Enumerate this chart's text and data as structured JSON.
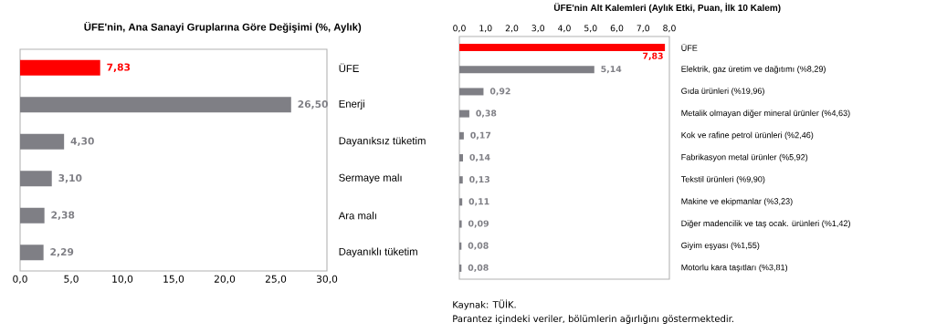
{
  "chart_data": [
    {
      "type": "bar",
      "orientation": "horizontal",
      "title": "ÜFE'nin, Ana Sanayi Gruplarına  Göre Değişimi  (%, Aylık)",
      "categories": [
        "ÜFE",
        "Enerji",
        "Dayanıksız tüketim",
        "Sermaye malı",
        "Ara malı",
        "Dayanıklı tüketim"
      ],
      "values": [
        7.83,
        26.5,
        4.3,
        3.1,
        2.38,
        2.29
      ],
      "value_labels": [
        "7,83",
        "26,50",
        "4,30",
        "3,10",
        "2,38",
        "2,29"
      ],
      "colors": [
        "#ff0000",
        "#7f7f85",
        "#7f7f85",
        "#7f7f85",
        "#7f7f85",
        "#7f7f85"
      ],
      "xlim": [
        0,
        30
      ],
      "xticks": [
        {
          "value": 0,
          "label": "0,0"
        },
        {
          "value": 5,
          "label": "5,0"
        },
        {
          "value": 10,
          "label": "10,0"
        },
        {
          "value": 15,
          "label": "15,0"
        },
        {
          "value": 20,
          "label": "20,0"
        },
        {
          "value": 25,
          "label": "25,0"
        },
        {
          "value": 30,
          "label": "30,0"
        }
      ]
    },
    {
      "type": "bar",
      "orientation": "horizontal",
      "title": "ÜFE'nin Alt Kalemleri (Aylık Etki, Puan,  İlk 10 Kalem)",
      "categories": [
        "ÜFE",
        "Elektrik, gaz üretim ve dağıtımı (%8,29)",
        "Gıda ürünleri (%19,96)",
        "Metalik olmayan diğer mineral ürünler (%4,63)",
        "Kok ve rafine petrol ürünleri (%2,46)",
        "Fabrikasyon metal ürünler (%5,92)",
        "Tekstil ürünleri (%9,90)",
        "Makine ve ekipmanlar (%3,23)",
        "Diğer madencilik ve taş ocak. ürünleri (%1,42)",
        "Giyim eşyası (%1,55)",
        "Motorlu kara taşıtları (%3,81)"
      ],
      "values": [
        7.83,
        5.14,
        0.92,
        0.38,
        0.17,
        0.14,
        0.13,
        0.11,
        0.09,
        0.08,
        0.08
      ],
      "value_labels": [
        "7,83",
        "5,14",
        "0,92",
        "0,38",
        "0,17",
        "0,14",
        "0,13",
        "0,11",
        "0,09",
        "0,08",
        "0,08"
      ],
      "colors": [
        "#ff0000",
        "#7f7f85",
        "#7f7f85",
        "#7f7f85",
        "#7f7f85",
        "#7f7f85",
        "#7f7f85",
        "#7f7f85",
        "#7f7f85",
        "#7f7f85",
        "#7f7f85"
      ],
      "x2lim": [
        0,
        8
      ],
      "x2ticks": [
        {
          "value": 0,
          "label": "0,0"
        },
        {
          "value": 1,
          "label": "1,0"
        },
        {
          "value": 2,
          "label": "2,0"
        },
        {
          "value": 3,
          "label": "3,0"
        },
        {
          "value": 4,
          "label": "4,0"
        },
        {
          "value": 5,
          "label": "5,0"
        },
        {
          "value": 6,
          "label": "6,0"
        },
        {
          "value": 7,
          "label": "7,0"
        },
        {
          "value": 8,
          "label": "8,0"
        }
      ],
      "annotations": [
        "Kaynak: TÜİK.",
        "Parantez içindeki veriler, bölümlerin ağırlığını  göstermektedir."
      ]
    }
  ]
}
